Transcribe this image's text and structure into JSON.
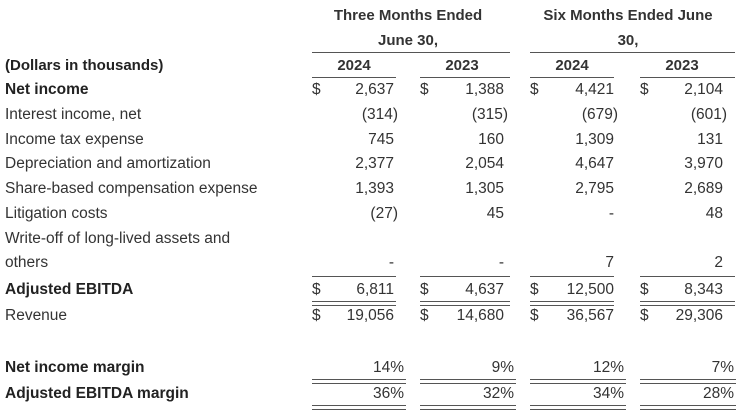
{
  "headers": {
    "three_months": "Three Months Ended",
    "three_months_2": "June 30,",
    "six_months": "Six Months Ended June",
    "six_months_2": "30,",
    "years": [
      "2024",
      "2023",
      "2024",
      "2023"
    ],
    "units_label": "(Dollars in thousands)"
  },
  "currency_symbol": "$",
  "rows": [
    {
      "label": "Net income",
      "values": [
        "2,637",
        "1,388",
        "4,421",
        "2,104"
      ]
    },
    {
      "label": "Interest income, net",
      "values": [
        "(314)",
        "(315)",
        "(679)",
        "(601)"
      ]
    },
    {
      "label": "Income tax expense",
      "values": [
        "745",
        "160",
        "1,309",
        "131"
      ]
    },
    {
      "label": "Depreciation and amortization",
      "values": [
        "2,377",
        "2,054",
        "4,647",
        "3,970"
      ]
    },
    {
      "label": "Share-based compensation expense",
      "values": [
        "1,393",
        "1,305",
        "2,795",
        "2,689"
      ]
    },
    {
      "label": "Litigation costs",
      "values": [
        "(27)",
        "45",
        "-",
        "48"
      ]
    },
    {
      "label": "Write-off of long-lived assets and",
      "label2": "others",
      "values": [
        "-",
        "-",
        "7",
        "2"
      ]
    },
    {
      "label": "Adjusted EBITDA",
      "values": [
        "6,811",
        "4,637",
        "12,500",
        "8,343"
      ]
    },
    {
      "label": "Revenue",
      "values": [
        "19,056",
        "14,680",
        "36,567",
        "29,306"
      ]
    },
    {
      "label": "Net income margin",
      "values": [
        "14%",
        "9%",
        "12%",
        "7%"
      ]
    },
    {
      "label": "Adjusted EBITDA margin",
      "values": [
        "36%",
        "32%",
        "34%",
        "28%"
      ]
    }
  ]
}
